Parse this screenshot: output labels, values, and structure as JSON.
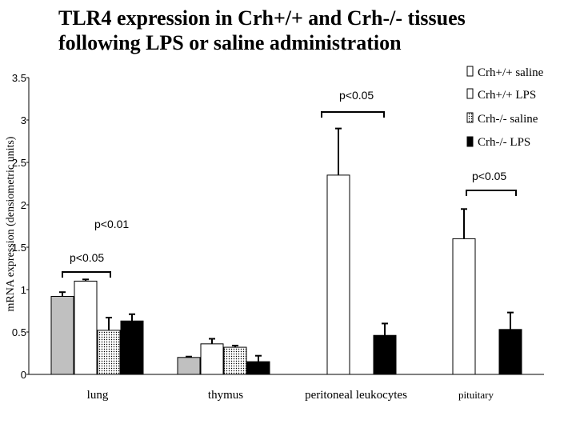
{
  "chart_data": {
    "type": "bar",
    "title_line1": "TLR4 expression in  Crh+/+ and Crh-/- tissues",
    "title_line2": "following LPS or saline administration",
    "ylabel": "mRNA expression (densiometric units)",
    "ylim": [
      0,
      3.5
    ],
    "yticks": [
      "0",
      "0.5",
      "1",
      "1.5",
      "2",
      "2.5",
      "3",
      "3.5"
    ],
    "categories": [
      "lung",
      "thymus",
      "peritoneal leukocytes",
      "pituitary"
    ],
    "series": [
      {
        "name": "Crh+/+ saline",
        "fill": "#c0c0c0",
        "values": [
          0.92,
          0.2,
          null,
          null
        ],
        "errors": [
          0.05,
          0.01,
          null,
          null
        ]
      },
      {
        "name": "Crh+/+ LPS",
        "fill": "#ffffff",
        "values": [
          1.1,
          0.36,
          2.35,
          1.6
        ],
        "errors": [
          0.02,
          0.06,
          0.55,
          0.35
        ]
      },
      {
        "name": "Crh-/- saline",
        "fill": "dots",
        "values": [
          0.52,
          0.32,
          null,
          null
        ],
        "errors": [
          0.15,
          0.02,
          null,
          null
        ]
      },
      {
        "name": "Crh-/- LPS",
        "fill": "#000000",
        "values": [
          0.63,
          0.15,
          0.46,
          0.53
        ],
        "errors": [
          0.08,
          0.07,
          0.14,
          0.2
        ]
      }
    ],
    "annotations": [
      "p<0.05",
      "p<0.01",
      "p<0.05",
      "p<0.05"
    ],
    "legend_position": "top-right"
  }
}
